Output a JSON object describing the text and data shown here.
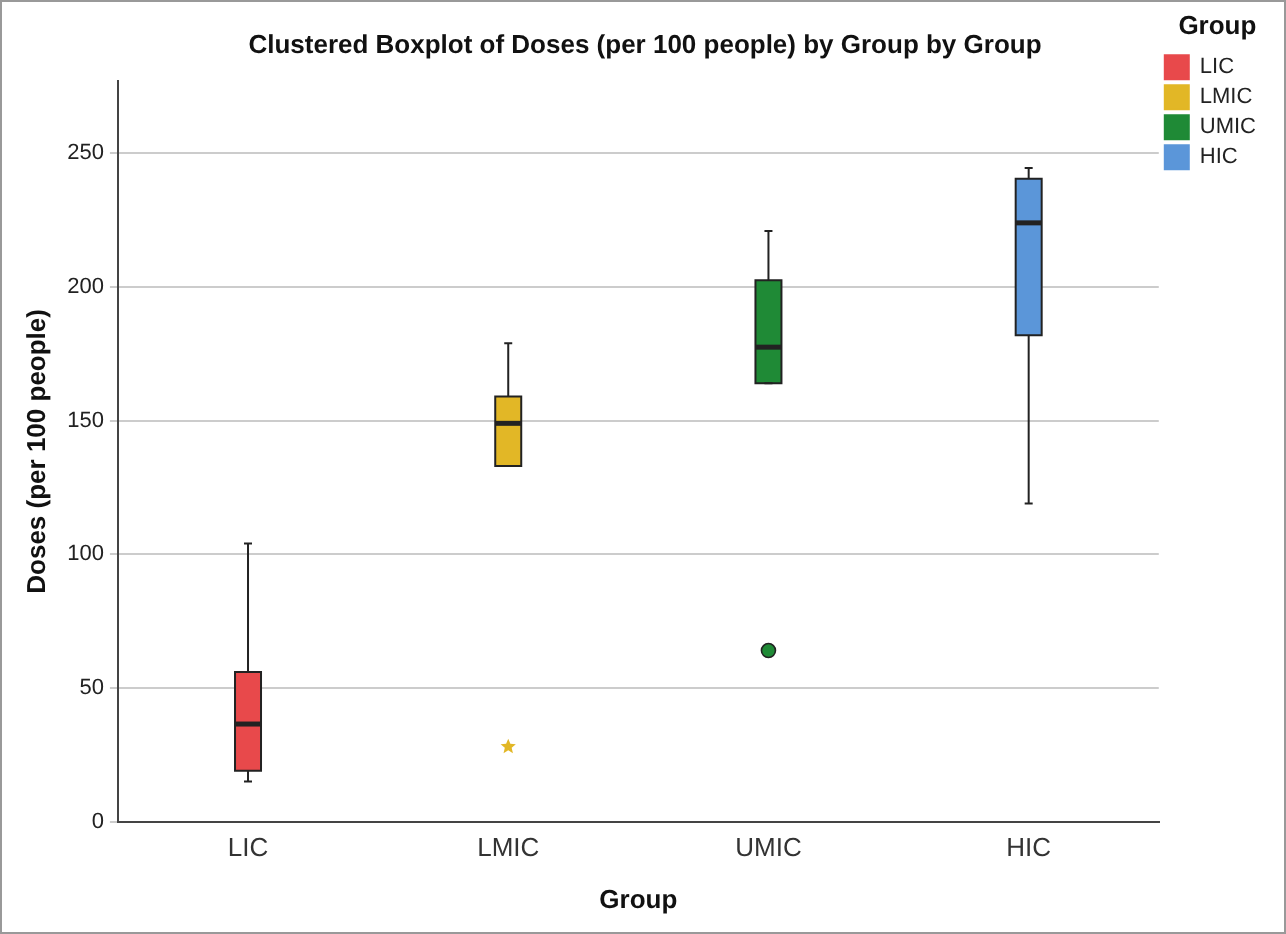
{
  "chart_data": {
    "type": "box",
    "title": "Clustered Boxplot of Doses (per 100 people) by Group by Group",
    "xlabel": "Group",
    "ylabel": "Doses (per 100 people)",
    "legend_title": "Group",
    "categories": [
      "LIC",
      "LMIC",
      "UMIC",
      "HIC"
    ],
    "series": [
      {
        "name": "LIC",
        "color": "#e8494b",
        "boxes": [
          {
            "low": 15,
            "q1": 19,
            "median": 36.5,
            "q3": 56,
            "high": 104
          },
          null,
          null,
          null
        ]
      },
      {
        "name": "LMIC",
        "color": "#e2b726",
        "marker": "star",
        "boxes": [
          null,
          {
            "low": 133,
            "q1": 133,
            "median": 149,
            "q3": 159,
            "high": 179,
            "outliers": [
              28
            ]
          },
          null,
          null
        ]
      },
      {
        "name": "UMIC",
        "color": "#1f8a36",
        "marker": "circle",
        "boxes": [
          null,
          null,
          {
            "low": 164,
            "q1": 164,
            "median": 177.5,
            "q3": 202.5,
            "high": 221,
            "outliers": [
              64
            ]
          },
          null
        ]
      },
      {
        "name": "HIC",
        "color": "#5b96d9",
        "boxes": [
          null,
          null,
          null,
          {
            "low": 119,
            "q1": 182,
            "median": 224,
            "q3": 240.5,
            "high": 244.5
          }
        ]
      }
    ],
    "ylim": [
      0,
      277
    ],
    "yticks": [
      0,
      50,
      100,
      150,
      200,
      250
    ],
    "grid": "y",
    "legend": "top right"
  }
}
